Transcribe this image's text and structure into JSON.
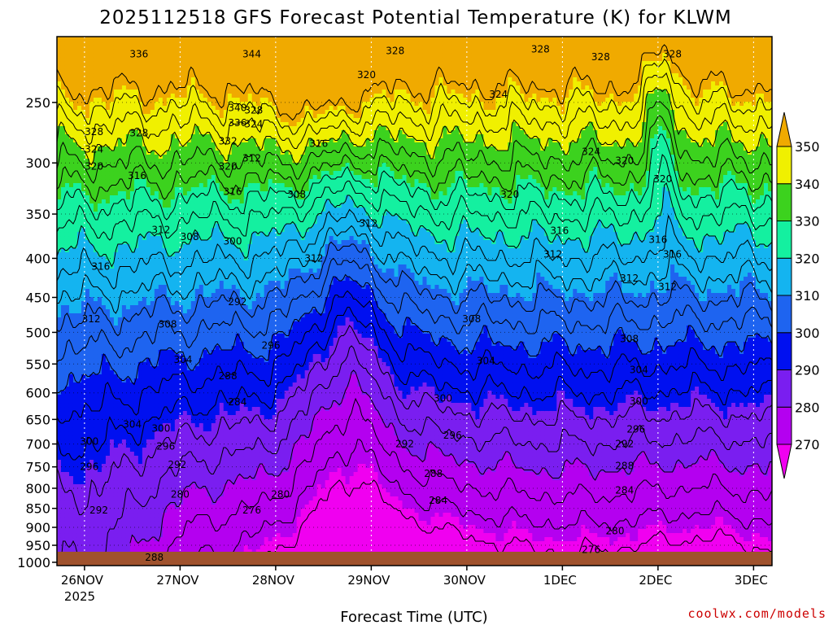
{
  "chart_data": {
    "type": "heatmap",
    "title": "2025112518 GFS Forecast Potential Temperature (K) for KLWM",
    "xlabel": "Forecast Time (UTC)",
    "ylabel": "",
    "x_ticks": [
      "26NOV",
      "27NOV",
      "28NOV",
      "29NOV",
      "30NOV",
      "1DEC",
      "2DEC",
      "3DEC"
    ],
    "x_tick_sub": "2025",
    "y_axis": "pressure (hPa), log scale, reversed",
    "y_ticks": [
      250,
      300,
      350,
      400,
      450,
      500,
      550,
      600,
      650,
      700,
      750,
      800,
      850,
      900,
      950,
      1000
    ],
    "ylim": [
      1010,
      205
    ],
    "colorbar": {
      "levels": [
        270,
        280,
        290,
        300,
        310,
        320,
        330,
        340,
        350
      ],
      "colors": [
        "#f000f0",
        "#b400f0",
        "#7a1ef0",
        "#0010f0",
        "#1e64f0",
        "#14b4f0",
        "#14f0a0",
        "#3cd21e",
        "#f0f000",
        "#f0aa00"
      ]
    },
    "ground_color": "#a0522d",
    "contour_interval": 4,
    "contour_labels": [
      {
        "t": 0.62,
        "p": 216,
        "v": "336"
      },
      {
        "t": 1.8,
        "p": 216,
        "v": "344"
      },
      {
        "t": 3.3,
        "p": 214,
        "v": "328"
      },
      {
        "t": 3.0,
        "p": 230,
        "v": "320"
      },
      {
        "t": 4.38,
        "p": 244,
        "v": "324"
      },
      {
        "t": 4.82,
        "p": 213,
        "v": "328"
      },
      {
        "t": 0.15,
        "p": 273,
        "v": "328"
      },
      {
        "t": 0.15,
        "p": 288,
        "v": "324"
      },
      {
        "t": 0.15,
        "p": 303,
        "v": "320"
      },
      {
        "t": 0.62,
        "p": 274,
        "v": "328"
      },
      {
        "t": 1.65,
        "p": 254,
        "v": "340"
      },
      {
        "t": 1.65,
        "p": 266,
        "v": "336"
      },
      {
        "t": 1.55,
        "p": 281,
        "v": "332"
      },
      {
        "t": 1.55,
        "p": 303,
        "v": "320"
      },
      {
        "t": 1.6,
        "p": 327,
        "v": "316"
      },
      {
        "t": 1.8,
        "p": 296,
        "v": "312"
      },
      {
        "t": 1.82,
        "p": 256,
        "v": "328"
      },
      {
        "t": 1.82,
        "p": 267,
        "v": "324"
      },
      {
        "t": 0.6,
        "p": 312,
        "v": "316"
      },
      {
        "t": 0.85,
        "p": 367,
        "v": "312"
      },
      {
        "t": 1.15,
        "p": 375,
        "v": "308"
      },
      {
        "t": 1.6,
        "p": 380,
        "v": "300"
      },
      {
        "t": 2.27,
        "p": 330,
        "v": "308"
      },
      {
        "t": 2.5,
        "p": 283,
        "v": "316"
      },
      {
        "t": 0.22,
        "p": 410,
        "v": "316"
      },
      {
        "t": 0.12,
        "p": 480,
        "v": "312"
      },
      {
        "t": 0.92,
        "p": 488,
        "v": "308"
      },
      {
        "t": 1.08,
        "p": 543,
        "v": "304"
      },
      {
        "t": 1.65,
        "p": 456,
        "v": "292"
      },
      {
        "t": 2.0,
        "p": 520,
        "v": "296"
      },
      {
        "t": 1.55,
        "p": 570,
        "v": "288"
      },
      {
        "t": 1.65,
        "p": 617,
        "v": "284"
      },
      {
        "t": 0.55,
        "p": 660,
        "v": "304"
      },
      {
        "t": 0.1,
        "p": 695,
        "v": "300"
      },
      {
        "t": 0.1,
        "p": 750,
        "v": "296"
      },
      {
        "t": 0.2,
        "p": 855,
        "v": "292"
      },
      {
        "t": 0.85,
        "p": 668,
        "v": "300"
      },
      {
        "t": 0.9,
        "p": 705,
        "v": "296"
      },
      {
        "t": 1.02,
        "p": 745,
        "v": "292"
      },
      {
        "t": 1.05,
        "p": 815,
        "v": "280"
      },
      {
        "t": 1.8,
        "p": 855,
        "v": "276"
      },
      {
        "t": 2.1,
        "p": 815,
        "v": "280"
      },
      {
        "t": 0.78,
        "p": 985,
        "v": "288"
      },
      {
        "t": 2.45,
        "p": 400,
        "v": "312"
      },
      {
        "t": 4.1,
        "p": 480,
        "v": "308"
      },
      {
        "t": 4.25,
        "p": 545,
        "v": "304"
      },
      {
        "t": 3.8,
        "p": 610,
        "v": "300"
      },
      {
        "t": 3.4,
        "p": 700,
        "v": "292"
      },
      {
        "t": 3.9,
        "p": 682,
        "v": "296"
      },
      {
        "t": 3.7,
        "p": 765,
        "v": "288"
      },
      {
        "t": 3.75,
        "p": 830,
        "v": "284"
      },
      {
        "t": 4.5,
        "p": 330,
        "v": "320"
      },
      {
        "t": 5.02,
        "p": 368,
        "v": "316"
      },
      {
        "t": 4.95,
        "p": 395,
        "v": "312"
      },
      {
        "t": 5.35,
        "p": 290,
        "v": "324"
      },
      {
        "t": 5.7,
        "p": 298,
        "v": "320"
      },
      {
        "t": 6.05,
        "p": 378,
        "v": "316"
      },
      {
        "t": 5.75,
        "p": 425,
        "v": "312"
      },
      {
        "t": 5.75,
        "p": 510,
        "v": "308"
      },
      {
        "t": 5.85,
        "p": 560,
        "v": "304"
      },
      {
        "t": 5.85,
        "p": 615,
        "v": "300"
      },
      {
        "t": 5.82,
        "p": 670,
        "v": "296"
      },
      {
        "t": 5.7,
        "p": 700,
        "v": "292"
      },
      {
        "t": 5.7,
        "p": 748,
        "v": "288"
      },
      {
        "t": 5.7,
        "p": 805,
        "v": "284"
      },
      {
        "t": 5.6,
        "p": 910,
        "v": "280"
      },
      {
        "t": 5.35,
        "p": 963,
        "v": "276"
      },
      {
        "t": 5.45,
        "p": 218,
        "v": "328"
      },
      {
        "t": 6.2,
        "p": 216,
        "v": "328"
      },
      {
        "t": 6.1,
        "p": 315,
        "v": "320"
      },
      {
        "t": 6.2,
        "p": 395,
        "v": "316"
      },
      {
        "t": 6.15,
        "p": 436,
        "v": "312"
      },
      {
        "t": 3.02,
        "p": 360,
        "v": "312"
      }
    ]
  }
}
